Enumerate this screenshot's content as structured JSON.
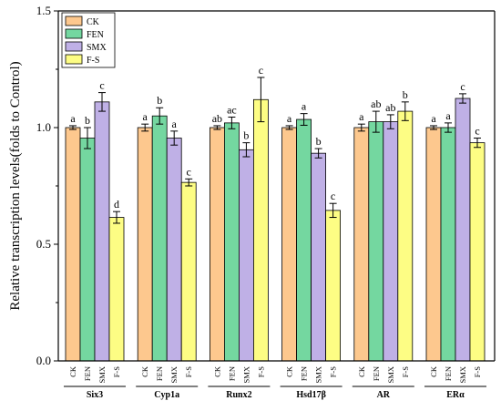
{
  "chart_data": {
    "type": "bar",
    "ylabel": "Relative transcription levels(folds to Control)",
    "ylim": [
      0.0,
      1.5
    ],
    "yticks": [
      "0.0",
      "0.5",
      "1.0",
      "1.5"
    ],
    "groups": [
      "Six3",
      "Cyp1a",
      "Runx2",
      "Hsd17β",
      "AR",
      "ERα"
    ],
    "legend_position": "top-left",
    "series": [
      {
        "name": "CK",
        "color": "#FDC88E",
        "values": [
          1.0,
          1.0,
          1.0,
          1.0,
          1.0,
          1.0
        ],
        "errors": [
          0.008,
          0.015,
          0.008,
          0.008,
          0.015,
          0.008
        ],
        "labels": [
          "a",
          "a",
          "ab",
          "a",
          "a",
          "a"
        ]
      },
      {
        "name": "FEN",
        "color": "#74D7A0",
        "values": [
          0.955,
          1.05,
          1.02,
          1.035,
          1.025,
          1.0
        ],
        "errors": [
          0.045,
          0.035,
          0.025,
          0.025,
          0.045,
          0.02
        ],
        "labels": [
          "b",
          "b",
          "ac",
          "a",
          "ab",
          "a"
        ]
      },
      {
        "name": "SMX",
        "color": "#BFB0E6",
        "values": [
          1.11,
          0.955,
          0.905,
          0.89,
          1.025,
          1.125
        ],
        "errors": [
          0.04,
          0.03,
          0.03,
          0.02,
          0.03,
          0.02
        ],
        "labels": [
          "c",
          "a",
          "b",
          "b",
          "ab",
          "c"
        ]
      },
      {
        "name": "F-S",
        "color": "#FDFD84",
        "values": [
          0.615,
          0.765,
          1.12,
          0.645,
          1.07,
          0.935
        ],
        "errors": [
          0.025,
          0.015,
          0.095,
          0.03,
          0.04,
          0.02
        ],
        "labels": [
          "d",
          "c",
          "c",
          "c",
          "b",
          "c"
        ]
      }
    ]
  }
}
